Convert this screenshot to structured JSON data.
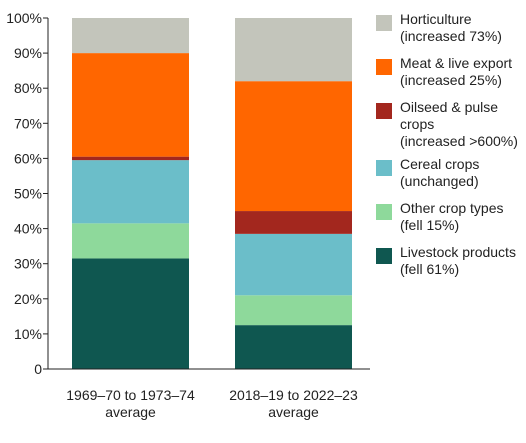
{
  "chart_data": {
    "type": "bar",
    "stacked": true,
    "categories": [
      [
        "1969–70 to 1973–74",
        "average"
      ],
      [
        "2018–19 to 2022–23",
        "average"
      ]
    ],
    "ylim": [
      0,
      100
    ],
    "y_ticks": [
      "0",
      "10%",
      "20%",
      "30%",
      "40%",
      "50%",
      "60%",
      "70%",
      "80%",
      "90%",
      "100%"
    ],
    "series": [
      {
        "name": "Livestock products",
        "note": "(fell 61%)",
        "color": "#0f5750",
        "values": [
          31.5,
          12.5
        ]
      },
      {
        "name": "Other crop types",
        "note": "(fell 15%)",
        "color": "#8ed99b",
        "values": [
          10,
          8.5
        ]
      },
      {
        "name": "Cereal crops",
        "note": "(unchanged)",
        "color": "#6bbec9",
        "values": [
          18,
          17.5
        ]
      },
      {
        "name": "Oilseed & pulse crops",
        "note": "(increased >600%)",
        "color": "#a3271e",
        "values": [
          1,
          6.5
        ]
      },
      {
        "name": "Meat & live export",
        "note": "(increased 25%)",
        "color": "#ff6600",
        "values": [
          29.5,
          37
        ]
      },
      {
        "name": "Horticulture",
        "note": "(increased 73%)",
        "color": "#c3c5bb",
        "values": [
          10,
          18
        ]
      }
    ],
    "legend": [
      {
        "lines": [
          "Horticulture",
          "(increased 73%)"
        ],
        "color": "#c3c5bb"
      },
      {
        "lines": [
          "Meat & live export",
          "(increased 25%)"
        ],
        "color": "#ff6600"
      },
      {
        "lines": [
          "Oilseed & pulse",
          "crops",
          "(increased >600%)"
        ],
        "color": "#a3271e"
      },
      {
        "lines": [
          "Cereal crops",
          "(unchanged)"
        ],
        "color": "#6bbec9"
      },
      {
        "lines": [
          "Other crop types",
          "(fell 15%)"
        ],
        "color": "#8ed99b"
      },
      {
        "lines": [
          "Livestock products",
          "(fell 61%)"
        ],
        "color": "#0f5750"
      }
    ],
    "legend_position": "right",
    "grid": false
  }
}
